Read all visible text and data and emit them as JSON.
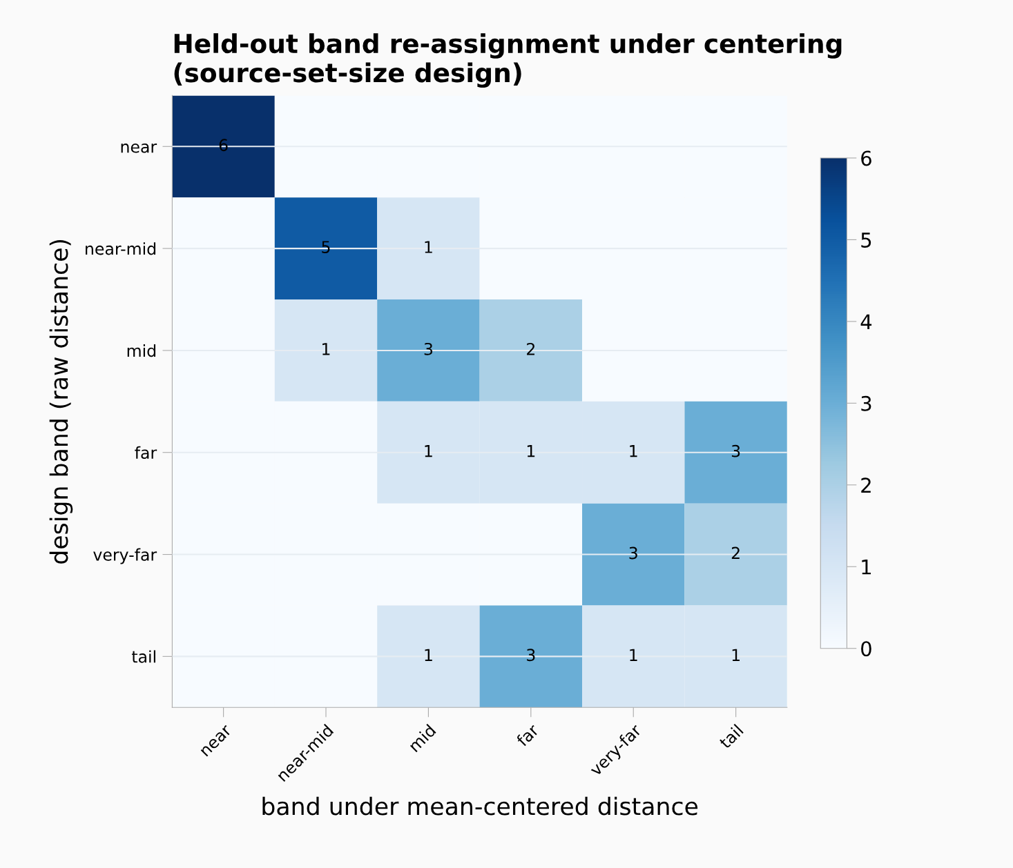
{
  "chart_data": {
    "type": "heatmap",
    "title": "Held-out band re-assignment under centering\n(source-set-size design)",
    "xlabel": "band under mean-centered distance",
    "ylabel": "design band (raw distance)",
    "categories": [
      "near",
      "near-mid",
      "mid",
      "far",
      "very-far",
      "tail"
    ],
    "y_categories": [
      "near",
      "near-mid",
      "mid",
      "far",
      "very-far",
      "tail"
    ],
    "cells": [
      [
        6,
        0,
        0,
        0,
        0,
        0
      ],
      [
        0,
        5,
        1,
        0,
        0,
        0
      ],
      [
        0,
        1,
        3,
        2,
        0,
        0
      ],
      [
        0,
        0,
        1,
        1,
        1,
        3
      ],
      [
        0,
        0,
        0,
        0,
        3,
        2
      ],
      [
        0,
        0,
        1,
        3,
        1,
        1
      ]
    ],
    "cell_labels": [
      [
        "6",
        null,
        null,
        null,
        null,
        null
      ],
      [
        null,
        "5",
        "1",
        null,
        null,
        null
      ],
      [
        null,
        "1",
        "3",
        "2",
        null,
        null
      ],
      [
        null,
        null,
        "1",
        "1",
        "1",
        "3"
      ],
      [
        null,
        null,
        null,
        null,
        "3",
        "2"
      ],
      [
        null,
        null,
        "1",
        "3",
        "1",
        "1"
      ]
    ],
    "clim": [
      0,
      6
    ],
    "cticks": [
      0,
      1,
      2,
      3,
      4,
      5,
      6
    ],
    "grid": "y"
  }
}
